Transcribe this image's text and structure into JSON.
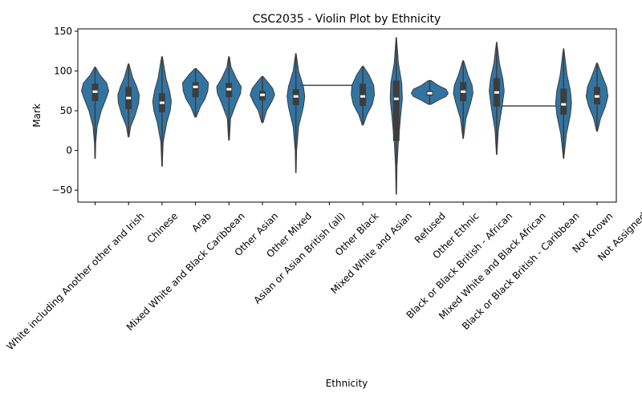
{
  "chart_data": {
    "type": "violin",
    "title": "CSC2035 - Violin Plot by Ethnicity",
    "xlabel": "Ethnicity",
    "ylabel": "Mark",
    "ylim": [
      -65,
      153
    ],
    "yticks": [
      -50,
      0,
      50,
      100,
      150
    ],
    "grid": false,
    "color": "#3274a1",
    "categories": [
      "White including Another other and Irish",
      "Chinese",
      "Arab",
      "Mixed White and Black Caribbean",
      "Other Asian",
      "Other Mixed",
      "Asian or Asian British (all)",
      "Other Black",
      "Mixed White and Asian",
      "Refused",
      "Other Ethnic",
      "Black or Black British - African",
      "Mixed White and Black African",
      "Black or Black British - Caribbean",
      "Not Known",
      "Not Assigned"
    ],
    "series": [
      {
        "min": -10,
        "max": 105,
        "q1": 62,
        "median": 74,
        "q3": 84,
        "density": [
          [
            -10,
            0.02
          ],
          [
            10,
            0.05
          ],
          [
            30,
            0.15
          ],
          [
            50,
            0.45
          ],
          [
            65,
            0.8
          ],
          [
            75,
            1.0
          ],
          [
            85,
            0.85
          ],
          [
            95,
            0.35
          ],
          [
            105,
            0.03
          ]
        ]
      },
      {
        "min": 17,
        "max": 109,
        "q1": 52,
        "median": 66,
        "q3": 80,
        "density": [
          [
            17,
            0.03
          ],
          [
            30,
            0.15
          ],
          [
            45,
            0.5
          ],
          [
            60,
            0.75
          ],
          [
            70,
            0.78
          ],
          [
            80,
            0.6
          ],
          [
            92,
            0.3
          ],
          [
            109,
            0.03
          ]
        ]
      },
      {
        "min": -20,
        "max": 118,
        "q1": 48,
        "median": 60,
        "q3": 72,
        "density": [
          [
            -20,
            0.02
          ],
          [
            10,
            0.08
          ],
          [
            35,
            0.35
          ],
          [
            50,
            0.6
          ],
          [
            62,
            0.68
          ],
          [
            75,
            0.55
          ],
          [
            90,
            0.3
          ],
          [
            118,
            0.03
          ]
        ]
      },
      {
        "min": 42,
        "max": 103,
        "q1": 67,
        "median": 80,
        "q3": 86,
        "density": [
          [
            42,
            0.05
          ],
          [
            55,
            0.35
          ],
          [
            65,
            0.7
          ],
          [
            75,
            0.9
          ],
          [
            85,
            0.95
          ],
          [
            95,
            0.5
          ],
          [
            103,
            0.05
          ]
        ]
      },
      {
        "min": 13,
        "max": 118,
        "q1": 67,
        "median": 77,
        "q3": 85,
        "density": [
          [
            13,
            0.03
          ],
          [
            40,
            0.12
          ],
          [
            60,
            0.55
          ],
          [
            72,
            0.85
          ],
          [
            80,
            0.9
          ],
          [
            90,
            0.55
          ],
          [
            105,
            0.15
          ],
          [
            118,
            0.03
          ]
        ]
      },
      {
        "min": 35,
        "max": 93,
        "q1": 63,
        "median": 70,
        "q3": 75,
        "density": [
          [
            35,
            0.05
          ],
          [
            50,
            0.3
          ],
          [
            62,
            0.7
          ],
          [
            70,
            0.9
          ],
          [
            78,
            0.75
          ],
          [
            88,
            0.3
          ],
          [
            93,
            0.05
          ]
        ]
      },
      {
        "min": -28,
        "max": 122,
        "q1": 57,
        "median": 68,
        "q3": 77,
        "density": [
          [
            -28,
            0.02
          ],
          [
            0,
            0.05
          ],
          [
            30,
            0.2
          ],
          [
            55,
            0.55
          ],
          [
            68,
            0.65
          ],
          [
            80,
            0.55
          ],
          [
            100,
            0.2
          ],
          [
            122,
            0.02
          ]
        ]
      },
      {
        "min": 82,
        "max": 82,
        "q1": 82,
        "median": 82,
        "q3": 82,
        "density": []
      },
      {
        "min": 32,
        "max": 106,
        "q1": 56,
        "median": 68,
        "q3": 84,
        "density": [
          [
            32,
            0.04
          ],
          [
            45,
            0.3
          ],
          [
            58,
            0.7
          ],
          [
            70,
            0.85
          ],
          [
            82,
            0.8
          ],
          [
            95,
            0.45
          ],
          [
            106,
            0.04
          ]
        ]
      },
      {
        "min": -55,
        "max": 142,
        "q1": 12,
        "median": 65,
        "q3": 88,
        "density": [
          [
            -55,
            0.02
          ],
          [
            -20,
            0.05
          ],
          [
            10,
            0.15
          ],
          [
            40,
            0.3
          ],
          [
            65,
            0.45
          ],
          [
            85,
            0.4
          ],
          [
            110,
            0.15
          ],
          [
            142,
            0.02
          ]
        ]
      },
      {
        "min": 58,
        "max": 88,
        "q1": 69,
        "median": 72,
        "q3": 75,
        "density": [
          [
            58,
            0.1
          ],
          [
            63,
            0.6
          ],
          [
            68,
            1.2
          ],
          [
            72,
            1.35
          ],
          [
            77,
            1.2
          ],
          [
            82,
            0.6
          ],
          [
            88,
            0.1
          ]
        ]
      },
      {
        "min": 15,
        "max": 113,
        "q1": 62,
        "median": 74,
        "q3": 86,
        "density": [
          [
            15,
            0.02
          ],
          [
            40,
            0.2
          ],
          [
            60,
            0.55
          ],
          [
            72,
            0.72
          ],
          [
            82,
            0.65
          ],
          [
            95,
            0.35
          ],
          [
            113,
            0.03
          ]
        ]
      },
      {
        "min": -5,
        "max": 136,
        "q1": 55,
        "median": 73,
        "q3": 91,
        "density": [
          [
            -5,
            0.02
          ],
          [
            25,
            0.12
          ],
          [
            55,
            0.4
          ],
          [
            75,
            0.55
          ],
          [
            90,
            0.45
          ],
          [
            110,
            0.2
          ],
          [
            136,
            0.02
          ]
        ]
      },
      {
        "min": 56,
        "max": 56,
        "q1": 56,
        "median": 56,
        "q3": 56,
        "density": []
      },
      {
        "min": -10,
        "max": 128,
        "q1": 45,
        "median": 58,
        "q3": 78,
        "density": [
          [
            -10,
            0.02
          ],
          [
            20,
            0.2
          ],
          [
            45,
            0.5
          ],
          [
            60,
            0.58
          ],
          [
            75,
            0.5
          ],
          [
            95,
            0.25
          ],
          [
            128,
            0.02
          ]
        ]
      },
      {
        "min": 24,
        "max": 110,
        "q1": 58,
        "median": 68,
        "q3": 80,
        "density": [
          [
            24,
            0.03
          ],
          [
            40,
            0.25
          ],
          [
            55,
            0.6
          ],
          [
            68,
            0.8
          ],
          [
            80,
            0.7
          ],
          [
            95,
            0.35
          ],
          [
            110,
            0.03
          ]
        ]
      }
    ]
  }
}
